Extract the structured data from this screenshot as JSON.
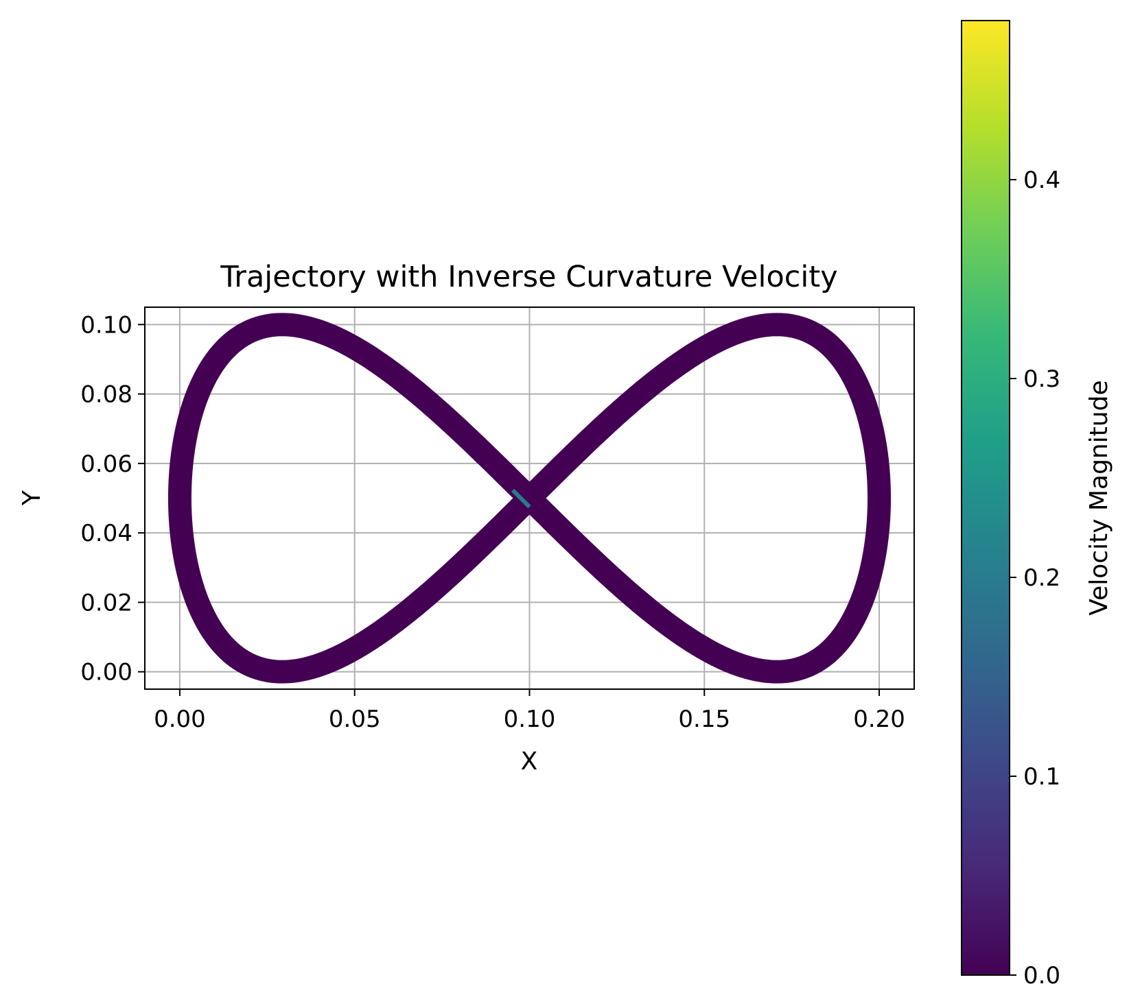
{
  "chart_data": {
    "type": "line",
    "title": "Trajectory with Inverse Curvature Velocity",
    "xlabel": "X",
    "ylabel": "Y",
    "xlim": [
      -0.01,
      0.21
    ],
    "ylim": [
      -0.005,
      0.105
    ],
    "xticks": [
      "0.00",
      "0.05",
      "0.10",
      "0.15",
      "0.20"
    ],
    "yticks": [
      "0.00",
      "0.02",
      "0.04",
      "0.06",
      "0.08",
      "0.10"
    ],
    "grid": true,
    "curve": {
      "shape": "figure-eight",
      "x_center": 0.1,
      "x_amplitude": 0.1,
      "y_center": 0.05,
      "y_amplitude": 0.05,
      "color": "#440154",
      "highlight_color": "#2a7b8e"
    },
    "colorbar": {
      "label": "Velocity Magnitude",
      "range": [
        0.0,
        0.48
      ],
      "ticks": [
        "0.0",
        "0.1",
        "0.2",
        "0.3",
        "0.4"
      ],
      "tick_values": [
        0.0,
        0.1,
        0.2,
        0.3,
        0.4
      ],
      "colormap": "viridis",
      "stops": [
        "#440154",
        "#482878",
        "#3e4989",
        "#31688e",
        "#26828e",
        "#1f9e89",
        "#35b779",
        "#6ece58",
        "#b5de2b",
        "#fde725"
      ]
    }
  }
}
